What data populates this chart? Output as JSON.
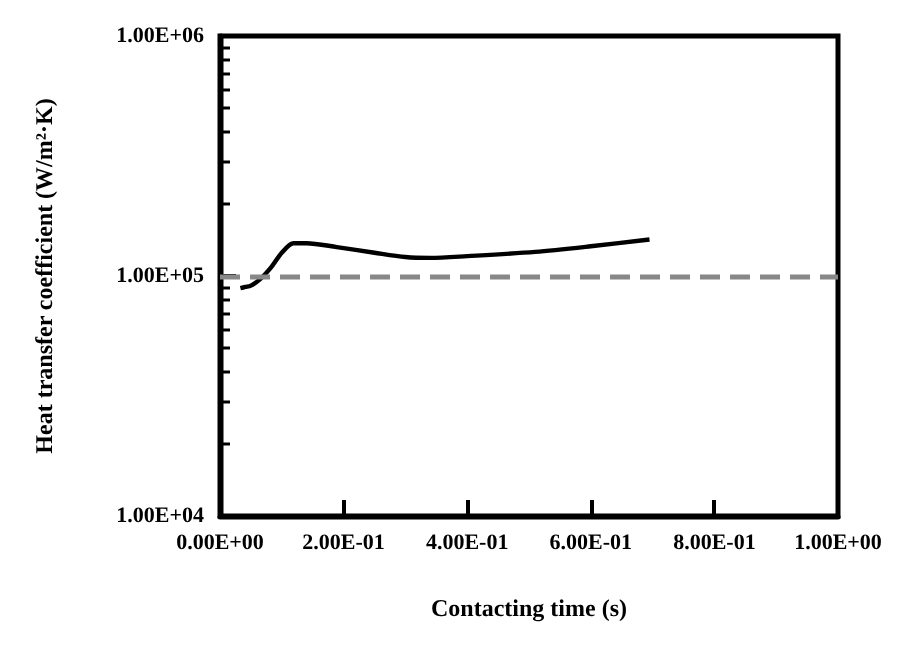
{
  "chart_data": {
    "type": "line",
    "xlabel": "Contacting time (s)",
    "ylabel": "Heat transfer coefficient (W/m²·K)",
    "log": "y",
    "xlim": [
      0,
      1
    ],
    "xticks": [
      {
        "value": 0,
        "label": "0.00E+00"
      },
      {
        "value": 0.2,
        "label": "2.00E-01"
      },
      {
        "value": 0.4,
        "label": "4.00E-01"
      },
      {
        "value": 0.6,
        "label": "6.00E-01"
      },
      {
        "value": 0.8,
        "label": "8.00E-01"
      },
      {
        "value": 1,
        "label": "1.00E+00"
      }
    ],
    "ylim": [
      10000,
      1000000
    ],
    "yticks": [
      {
        "value": 10000,
        "label": "1.00E+04"
      },
      {
        "value": 100000,
        "label": "1.00E+05"
      },
      {
        "value": 1000000,
        "label": "1.00E+06"
      }
    ],
    "series": [
      {
        "color": "#000000",
        "x": [
          0.033,
          0.041,
          0.05,
          0.065,
          0.082,
          0.1,
          0.119,
          0.14,
          0.189,
          0.25,
          0.3,
          0.34,
          0.4,
          0.51,
          0.6,
          0.695
        ],
        "values": [
          89000,
          90000,
          91200,
          97000,
          108000,
          125000,
          137000,
          137000,
          132000,
          125000,
          120000,
          119000,
          121000,
          126000,
          133000,
          142000
        ]
      }
    ],
    "ref_lines": [
      {
        "axis": "y",
        "value": 100000,
        "color": "#888888",
        "line_style": "dashed"
      }
    ],
    "grid": false,
    "marker": "none",
    "line_style": "solid"
  }
}
